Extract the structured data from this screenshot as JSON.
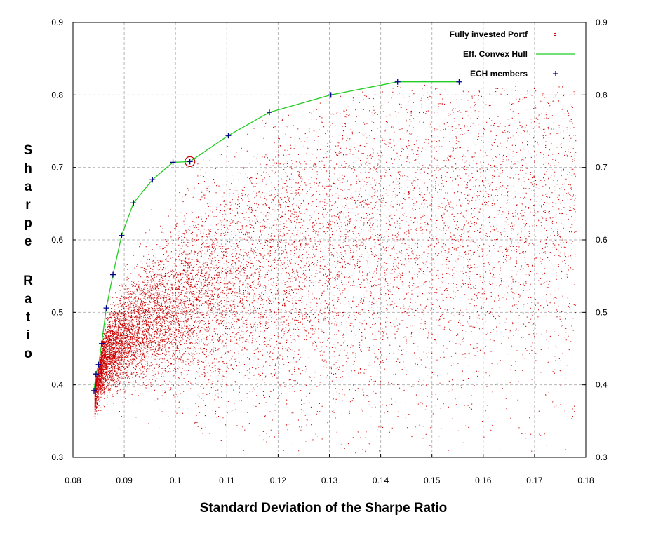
{
  "chart_data": {
    "type": "scatter",
    "title": "",
    "xlabel": "Standard Deviation of the Sharpe Ratio",
    "ylabel": "Sharpe Ratio",
    "xlim": [
      0.08,
      0.18
    ],
    "ylim": [
      0.3,
      0.9
    ],
    "x_ticks": [
      "0.08",
      "0.09",
      "0.1",
      "0.11",
      "0.12",
      "0.13",
      "0.14",
      "0.15",
      "0.16",
      "0.17",
      "0.18"
    ],
    "y_ticks": [
      "0.3",
      "0.4",
      "0.5",
      "0.6",
      "0.7",
      "0.8",
      "0.9"
    ],
    "grid": true,
    "legend_position": "top-right",
    "colors": {
      "portfolios": "#cc0000",
      "hull": "#22cc22",
      "members": "#00008b",
      "highlight": "#cc0000"
    },
    "series": [
      {
        "name": "Fully invested Portf",
        "kind": "scatter-cloud",
        "description_points": "dense cloud of simulated portfolios below the hull"
      },
      {
        "name": "Eff. Convex Hull",
        "kind": "line",
        "x": [
          0.0841,
          0.0845,
          0.085,
          0.0856,
          0.0865,
          0.0878,
          0.0895,
          0.0918,
          0.0955,
          0.0995,
          0.1028,
          0.1103,
          0.1183,
          0.1303,
          0.1433,
          0.1553
        ],
        "y": [
          0.392,
          0.415,
          0.428,
          0.457,
          0.506,
          0.552,
          0.606,
          0.651,
          0.683,
          0.707,
          0.708,
          0.744,
          0.776,
          0.8,
          0.818,
          0.818
        ]
      },
      {
        "name": "ECH members",
        "kind": "markers",
        "x": [
          0.0841,
          0.0845,
          0.085,
          0.0856,
          0.0865,
          0.0878,
          0.0895,
          0.0918,
          0.0955,
          0.0995,
          0.1028,
          0.1103,
          0.1183,
          0.1303,
          0.1433,
          0.1553
        ],
        "y": [
          0.392,
          0.415,
          0.428,
          0.457,
          0.506,
          0.552,
          0.606,
          0.651,
          0.683,
          0.707,
          0.708,
          0.744,
          0.776,
          0.8,
          0.818,
          0.818
        ]
      }
    ],
    "highlight": {
      "x": 0.1028,
      "y": 0.708
    }
  }
}
